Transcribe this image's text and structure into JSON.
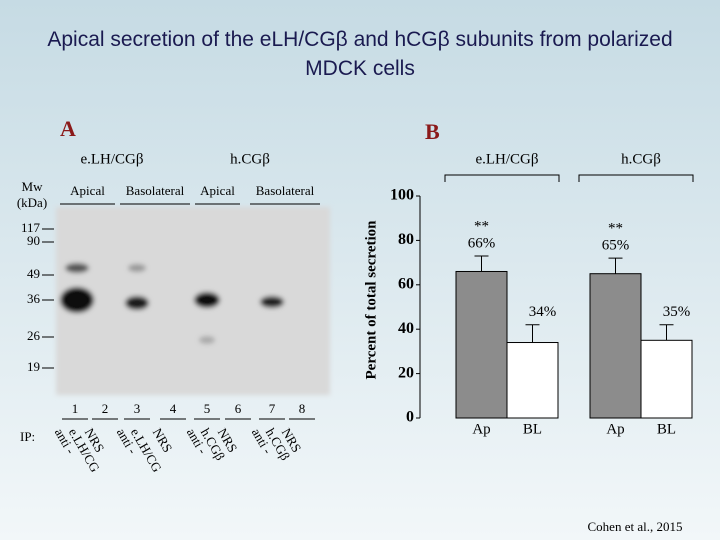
{
  "title": "Apical secretion of the eLH/CGβ and hCGβ subunits from polarized MDCK cells",
  "panel_a": {
    "label": "A",
    "groups": [
      {
        "name": "e.LH/CGβ",
        "conditions": [
          "Apical",
          "Basolateral"
        ]
      },
      {
        "name": "h.CGβ",
        "conditions": [
          "Apical",
          "Basolateral"
        ]
      }
    ],
    "mw_label": [
      "Mw",
      "(kDa)"
    ],
    "markers": [
      "117",
      "90",
      "49",
      "36",
      "26",
      "19"
    ],
    "lanes": [
      "1",
      "2",
      "3",
      "4",
      "5",
      "6",
      "7",
      "8"
    ],
    "ip_label": "IP:",
    "antibodies": [
      [
        "anti -",
        "e.LH/CG"
      ],
      [
        "NRS"
      ],
      [
        "anti -",
        "e.LH/CG"
      ],
      [
        "NRS"
      ],
      [
        "anti -",
        "h.CGβ"
      ],
      [
        "NRS"
      ],
      [
        "anti -",
        "h.CGβ"
      ],
      [
        "NRS"
      ]
    ]
  },
  "chart_data": {
    "type": "bar",
    "panel_label": "B",
    "ylabel": "Percent of total secretion",
    "categories": [
      "e.LH/CGβ",
      "h.CGβ"
    ],
    "series": [
      {
        "name": "Ap",
        "color": "#8c8c8c",
        "values": [
          66,
          65
        ],
        "errors": [
          7,
          7
        ],
        "value_labels": [
          "66%",
          "65%"
        ]
      },
      {
        "name": "BL",
        "color": "#ffffff",
        "values": [
          34,
          35
        ],
        "errors": [
          8,
          7
        ],
        "value_labels": [
          "34%",
          "35%"
        ]
      }
    ],
    "significance": "**",
    "ylim": [
      0,
      100
    ],
    "yticks": [
      0,
      20,
      40,
      60,
      80,
      100
    ]
  },
  "citation": "Cohen et al., 2015"
}
